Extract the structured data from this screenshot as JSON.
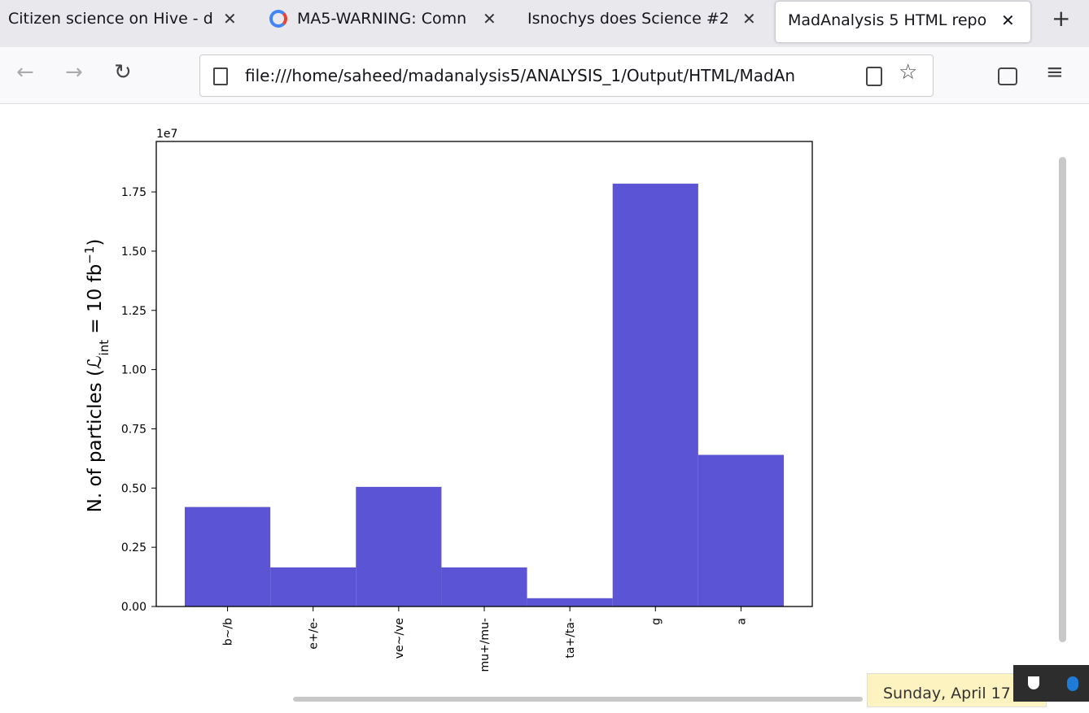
{
  "tabs": [
    "Citizen science on Hive - d",
    "MA5-WARNING: Comn",
    "Isnochys does Science #2",
    "MadAnalysis 5 HTML repo"
  ],
  "url": "file:///home/saheed/madanalysis5/ANALYSIS_1/Output/HTML/MadAn",
  "tooltip": "Sunday, April 17",
  "chart_data": {
    "type": "bar",
    "offset_label": "1e7",
    "ylabel_parts": [
      "N.  of particles (",
      "ℒ",
      "int",
      " = 10 fb",
      "−1",
      ")"
    ],
    "categories": [
      "b~/b",
      "e+/e-",
      "ve~/ve",
      "mu+/mu-",
      "ta+/ta-",
      "g",
      "a"
    ],
    "values": [
      0.42,
      0.165,
      0.505,
      0.165,
      0.035,
      1.785,
      0.64
    ],
    "color": "#5b55d6",
    "ylim": [
      0,
      1.963
    ],
    "yticks": [
      {
        "value": 0,
        "label": "0.00"
      },
      {
        "value": 0.25,
        "label": "0.25"
      },
      {
        "value": 0.5,
        "label": "0.50"
      },
      {
        "value": 0.75,
        "label": "0.75"
      },
      {
        "value": 1,
        "label": "1.00"
      },
      {
        "value": 1.25,
        "label": "1.25"
      },
      {
        "value": 1.5,
        "label": "1.50"
      },
      {
        "value": 1.75,
        "label": "1.75"
      }
    ]
  }
}
